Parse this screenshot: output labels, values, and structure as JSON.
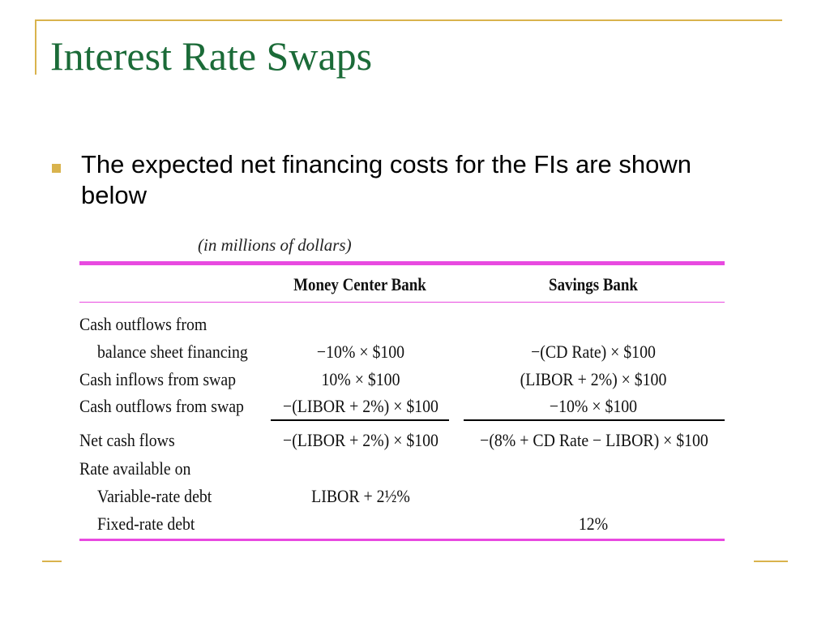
{
  "slide": {
    "title": "Interest Rate Swaps",
    "bullet": "The expected net financing costs for the FIs are shown below"
  },
  "table": {
    "units_note": "(in millions of dollars)",
    "col_money_center": "Money Center Bank",
    "col_savings": "Savings Bank",
    "rows": [
      {
        "label": "Cash outflows from",
        "money_center": "",
        "savings": ""
      },
      {
        "label": "balance sheet financing",
        "money_center": "−10% × $100",
        "savings": "−(CD Rate) × $100"
      },
      {
        "label": "Cash inflows from swap",
        "money_center": "10% × $100",
        "savings": "(LIBOR + 2%) × $100"
      },
      {
        "label": "Cash outflows from swap",
        "money_center": "−(LIBOR + 2%) × $100",
        "savings": "−10% × $100"
      },
      {
        "label": "Net cash flows",
        "money_center": "−(LIBOR + 2%) × $100",
        "savings": "−(8% + CD Rate − LIBOR) × $100"
      },
      {
        "label": "Rate available on",
        "money_center": "",
        "savings": ""
      },
      {
        "label": "Variable-rate debt",
        "money_center": "LIBOR + 2½%",
        "savings": ""
      },
      {
        "label": "Fixed-rate debt",
        "money_center": "",
        "savings": "12%"
      }
    ]
  },
  "colors": {
    "accent_gold": "#d9b34d",
    "title_green": "#1b6b38",
    "table_rule_magenta": "#e84ae0"
  }
}
